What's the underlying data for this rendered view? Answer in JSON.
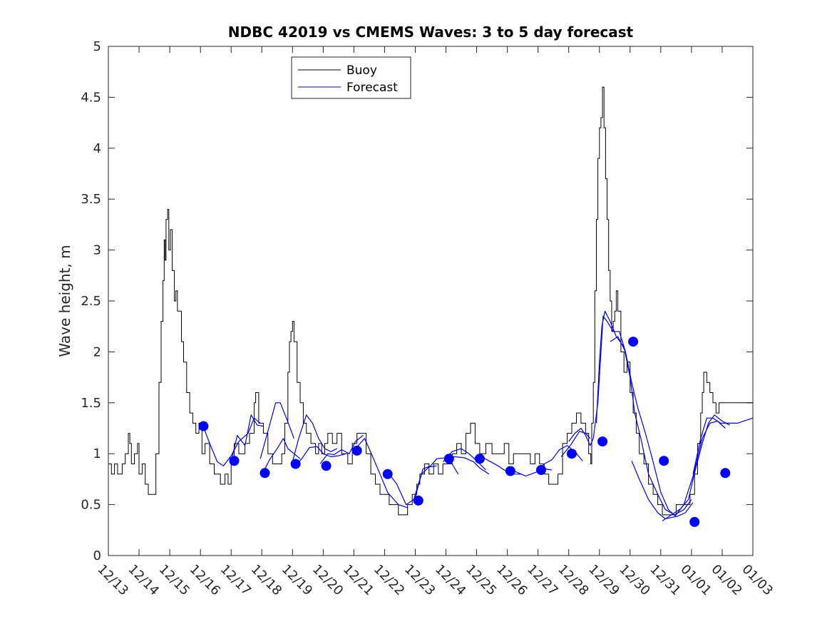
{
  "chart_data": {
    "type": "line",
    "title": "NDBC 42019 vs CMEMS Waves: 3 to 5 day forecast",
    "xlabel": "",
    "ylabel": "Wave height, m",
    "xlim": [
      0,
      21
    ],
    "ylim": [
      0,
      5
    ],
    "grid": false,
    "legend_position": "top-center",
    "categories": [
      "12/13",
      "12/14",
      "12/15",
      "12/16",
      "12/17",
      "12/18",
      "12/19",
      "12/20",
      "12/21",
      "12/22",
      "12/23",
      "12/24",
      "12/25",
      "12/26",
      "12/27",
      "12/28",
      "12/29",
      "12/30",
      "12/31",
      "01/01",
      "01/02",
      "01/03"
    ],
    "yticks": [
      "0",
      "0.5",
      "1",
      "1.5",
      "2",
      "2.5",
      "3",
      "3.5",
      "4",
      "4.5",
      "5"
    ],
    "legend": [
      "Buoy",
      "Forecast"
    ],
    "colors": {
      "buoy": "#000000",
      "forecast": "#0000ff",
      "axes": "#262626"
    },
    "buoy": [
      [
        0,
        0.9
      ],
      [
        0.1,
        0.8
      ],
      [
        0.2,
        0.9
      ],
      [
        0.3,
        0.8
      ],
      [
        0.45,
        0.9
      ],
      [
        0.55,
        1.0
      ],
      [
        0.65,
        1.2
      ],
      [
        0.7,
        1.1
      ],
      [
        0.75,
        0.9
      ],
      [
        0.85,
        1.0
      ],
      [
        0.95,
        1.1
      ],
      [
        1.0,
        0.8
      ],
      [
        1.1,
        0.9
      ],
      [
        1.2,
        0.7
      ],
      [
        1.3,
        0.6
      ],
      [
        1.45,
        0.6
      ],
      [
        1.55,
        1.0
      ],
      [
        1.65,
        1.7
      ],
      [
        1.72,
        2.3
      ],
      [
        1.78,
        2.7
      ],
      [
        1.82,
        3.1
      ],
      [
        1.85,
        2.9
      ],
      [
        1.88,
        3.3
      ],
      [
        1.93,
        3.4
      ],
      [
        1.97,
        3.0
      ],
      [
        2.02,
        3.2
      ],
      [
        2.08,
        2.8
      ],
      [
        2.15,
        2.5
      ],
      [
        2.2,
        2.6
      ],
      [
        2.25,
        2.4
      ],
      [
        2.3,
        2.4
      ],
      [
        2.38,
        2.1
      ],
      [
        2.45,
        1.9
      ],
      [
        2.55,
        1.6
      ],
      [
        2.65,
        1.4
      ],
      [
        2.75,
        1.3
      ],
      [
        2.85,
        1.2
      ],
      [
        2.95,
        1.3
      ],
      [
        3.05,
        1.0
      ],
      [
        3.15,
        1.1
      ],
      [
        3.3,
        0.9
      ],
      [
        3.45,
        0.8
      ],
      [
        3.55,
        0.8
      ],
      [
        3.65,
        0.7
      ],
      [
        3.8,
        0.8
      ],
      [
        3.9,
        0.7
      ],
      [
        4.0,
        0.9
      ],
      [
        4.1,
        1.1
      ],
      [
        4.25,
        1.0
      ],
      [
        4.45,
        1.1
      ],
      [
        4.6,
        1.2
      ],
      [
        4.75,
        1.5
      ],
      [
        4.8,
        1.6
      ],
      [
        4.9,
        1.3
      ],
      [
        5.05,
        1.2
      ],
      [
        5.2,
        1.0
      ],
      [
        5.35,
        0.9
      ],
      [
        5.5,
        0.9
      ],
      [
        5.65,
        1.0
      ],
      [
        5.75,
        1.3
      ],
      [
        5.85,
        1.8
      ],
      [
        5.9,
        2.1
      ],
      [
        5.95,
        2.2
      ],
      [
        6.0,
        2.3
      ],
      [
        6.05,
        2.1
      ],
      [
        6.15,
        1.7
      ],
      [
        6.25,
        1.5
      ],
      [
        6.35,
        1.3
      ],
      [
        6.45,
        1.2
      ],
      [
        6.6,
        1.1
      ],
      [
        6.75,
        1.0
      ],
      [
        6.85,
        1.1
      ],
      [
        6.95,
        1.0
      ],
      [
        7.05,
        1.1
      ],
      [
        7.15,
        1.2
      ],
      [
        7.3,
        1.1
      ],
      [
        7.45,
        1.2
      ],
      [
        7.6,
        1.0
      ],
      [
        7.8,
        0.9
      ],
      [
        7.95,
        1.1
      ],
      [
        8.1,
        1.2
      ],
      [
        8.25,
        1.2
      ],
      [
        8.4,
        1.0
      ],
      [
        8.55,
        0.8
      ],
      [
        8.7,
        0.7
      ],
      [
        8.85,
        0.6
      ],
      [
        9.0,
        0.6
      ],
      [
        9.15,
        0.5
      ],
      [
        9.3,
        0.5
      ],
      [
        9.45,
        0.4
      ],
      [
        9.6,
        0.4
      ],
      [
        9.75,
        0.5
      ],
      [
        9.9,
        0.6
      ],
      [
        10.05,
        0.7
      ],
      [
        10.15,
        0.8
      ],
      [
        10.3,
        0.9
      ],
      [
        10.45,
        0.8
      ],
      [
        10.6,
        0.9
      ],
      [
        10.75,
        0.8
      ],
      [
        10.9,
        0.9
      ],
      [
        11.05,
        0.9
      ],
      [
        11.2,
        1.0
      ],
      [
        11.35,
        1.1
      ],
      [
        11.5,
        1.0
      ],
      [
        11.65,
        1.2
      ],
      [
        11.8,
        1.3
      ],
      [
        11.95,
        1.1
      ],
      [
        12.1,
        1.0
      ],
      [
        12.3,
        1.1
      ],
      [
        12.5,
        1.0
      ],
      [
        12.7,
        1.0
      ],
      [
        12.9,
        1.1
      ],
      [
        13.05,
        0.9
      ],
      [
        13.2,
        1.0
      ],
      [
        13.4,
        1.0
      ],
      [
        13.6,
        1.0
      ],
      [
        13.75,
        0.9
      ],
      [
        13.9,
        1.0
      ],
      [
        14.05,
        0.9
      ],
      [
        14.2,
        0.8
      ],
      [
        14.35,
        0.7
      ],
      [
        14.5,
        0.7
      ],
      [
        14.65,
        0.8
      ],
      [
        14.8,
        1.1
      ],
      [
        14.95,
        1.2
      ],
      [
        15.1,
        1.3
      ],
      [
        15.25,
        1.4
      ],
      [
        15.4,
        1.3
      ],
      [
        15.55,
        1.2
      ],
      [
        15.65,
        1.0
      ],
      [
        15.72,
        0.9
      ],
      [
        15.75,
        1.3
      ],
      [
        15.8,
        1.7
      ],
      [
        15.85,
        2.6
      ],
      [
        15.9,
        3.3
      ],
      [
        15.95,
        3.9
      ],
      [
        16.0,
        4.2
      ],
      [
        16.05,
        4.3
      ],
      [
        16.1,
        4.6
      ],
      [
        16.15,
        4.2
      ],
      [
        16.2,
        3.7
      ],
      [
        16.25,
        3.3
      ],
      [
        16.3,
        2.8
      ],
      [
        16.35,
        2.5
      ],
      [
        16.4,
        2.2
      ],
      [
        16.45,
        2.3
      ],
      [
        16.5,
        2.4
      ],
      [
        16.55,
        2.6
      ],
      [
        16.6,
        2.4
      ],
      [
        16.7,
        2.0
      ],
      [
        16.8,
        1.8
      ],
      [
        16.9,
        1.9
      ],
      [
        17.0,
        1.6
      ],
      [
        17.1,
        1.4
      ],
      [
        17.2,
        1.2
      ],
      [
        17.3,
        1.0
      ],
      [
        17.45,
        0.9
      ],
      [
        17.6,
        0.7
      ],
      [
        17.75,
        0.6
      ],
      [
        17.9,
        0.5
      ],
      [
        18.05,
        0.4
      ],
      [
        18.2,
        0.4
      ],
      [
        18.35,
        0.4
      ],
      [
        18.5,
        0.5
      ],
      [
        18.65,
        0.5
      ],
      [
        18.8,
        0.5
      ],
      [
        18.95,
        0.6
      ],
      [
        19.1,
        0.8
      ],
      [
        19.2,
        1.1
      ],
      [
        19.3,
        1.4
      ],
      [
        19.35,
        1.6
      ],
      [
        19.4,
        1.8
      ],
      [
        19.5,
        1.7
      ],
      [
        19.6,
        1.6
      ],
      [
        19.7,
        1.5
      ],
      [
        19.8,
        1.4
      ],
      [
        19.9,
        1.5
      ],
      [
        21.0,
        1.5
      ]
    ],
    "forecast_runs": [
      [
        [
          3.05,
          1.3
        ],
        [
          3.3,
          1.1
        ],
        [
          3.55,
          0.92
        ],
        [
          3.75,
          0.88
        ],
        [
          4.0,
          0.98
        ],
        [
          4.25,
          1.12
        ],
        [
          4.55,
          1.2
        ],
        [
          4.75,
          1.35
        ],
        [
          4.95,
          1.3
        ]
      ],
      [
        [
          4.0,
          0.92
        ],
        [
          4.2,
          1.18
        ],
        [
          4.45,
          1.08
        ],
        [
          4.65,
          1.38
        ],
        [
          4.85,
          1.28
        ],
        [
          5.05,
          1.27
        ]
      ],
      [
        [
          5.05,
          0.82
        ],
        [
          5.25,
          0.94
        ],
        [
          5.5,
          1.05
        ],
        [
          5.7,
          1.15
        ],
        [
          5.85,
          1.05
        ],
        [
          6.05,
          1.0
        ],
        [
          6.25,
          0.95
        ]
      ],
      [
        [
          4.95,
          0.95
        ],
        [
          5.2,
          1.22
        ],
        [
          5.45,
          1.5
        ],
        [
          5.6,
          1.5
        ],
        [
          5.8,
          1.35
        ],
        [
          6.05,
          1.15
        ]
      ],
      [
        [
          6.0,
          0.92
        ],
        [
          6.2,
          1.15
        ],
        [
          6.45,
          1.38
        ],
        [
          6.65,
          1.3
        ],
        [
          6.85,
          1.15
        ],
        [
          7.05,
          1.05
        ],
        [
          7.25,
          1.02
        ],
        [
          7.45,
          1.05
        ]
      ],
      [
        [
          6.05,
          0.86
        ],
        [
          6.3,
          0.95
        ],
        [
          6.55,
          1.06
        ],
        [
          6.8,
          1.07
        ],
        [
          7.0,
          1.0
        ],
        [
          7.25,
          0.97
        ],
        [
          7.5,
          0.98
        ],
        [
          7.75,
          1.0
        ]
      ],
      [
        [
          6.9,
          0.9
        ],
        [
          7.15,
          1.0
        ],
        [
          7.35,
          0.99
        ],
        [
          7.6,
          1.04
        ],
        [
          7.85,
          1.0
        ],
        [
          8.05,
          1.12
        ],
        [
          8.3,
          1.18
        ]
      ],
      [
        [
          8.05,
          1.05
        ],
        [
          8.35,
          1.15
        ],
        [
          8.6,
          0.98
        ],
        [
          8.85,
          0.8
        ],
        [
          9.1,
          0.62
        ],
        [
          9.45,
          0.5
        ],
        [
          9.75,
          0.47
        ]
      ],
      [
        [
          9.1,
          0.82
        ],
        [
          9.4,
          0.7
        ],
        [
          9.7,
          0.5
        ],
        [
          9.95,
          0.55
        ],
        [
          10.2,
          0.8
        ],
        [
          10.45,
          0.87
        ],
        [
          10.7,
          0.88
        ]
      ],
      [
        [
          9.95,
          0.52
        ],
        [
          10.25,
          0.85
        ],
        [
          10.5,
          0.88
        ],
        [
          10.7,
          0.95
        ],
        [
          11.0,
          0.96
        ],
        [
          11.2,
          0.9
        ],
        [
          11.4,
          0.8
        ]
      ],
      [
        [
          10.9,
          0.92
        ],
        [
          11.2,
          1.02
        ],
        [
          11.5,
          1.05
        ],
        [
          11.75,
          1.0
        ],
        [
          12.0,
          0.93
        ],
        [
          12.3,
          0.84
        ]
      ],
      [
        [
          10.95,
          0.97
        ],
        [
          11.3,
          0.97
        ],
        [
          11.6,
          0.96
        ],
        [
          11.9,
          0.92
        ],
        [
          12.1,
          0.86
        ],
        [
          12.4,
          0.8
        ]
      ],
      [
        [
          12.1,
          0.98
        ],
        [
          12.4,
          0.93
        ],
        [
          12.7,
          0.88
        ],
        [
          12.95,
          0.83
        ],
        [
          13.2,
          0.8
        ],
        [
          13.45,
          0.8
        ]
      ],
      [
        [
          12.95,
          0.85
        ],
        [
          13.3,
          0.82
        ],
        [
          13.6,
          0.78
        ],
        [
          13.95,
          0.82
        ],
        [
          14.25,
          0.85
        ],
        [
          14.45,
          0.84
        ]
      ],
      [
        [
          13.95,
          0.82
        ],
        [
          14.2,
          0.9
        ],
        [
          14.45,
          0.94
        ],
        [
          14.7,
          1.04
        ],
        [
          14.95,
          1.08
        ],
        [
          15.2,
          1.02
        ],
        [
          15.45,
          0.93
        ]
      ],
      [
        [
          14.75,
          0.97
        ],
        [
          15.05,
          1.08
        ],
        [
          15.35,
          1.22
        ],
        [
          15.55,
          1.2
        ],
        [
          15.7,
          1.15
        ]
      ],
      [
        [
          15.0,
          1.12
        ],
        [
          15.2,
          1.2
        ],
        [
          15.4,
          1.25
        ],
        [
          15.55,
          1.18
        ],
        [
          15.7,
          1.08
        ],
        [
          15.8,
          1.15
        ],
        [
          15.95,
          1.5
        ],
        [
          16.05,
          2.0
        ],
        [
          16.12,
          2.35
        ],
        [
          16.25,
          2.3
        ],
        [
          16.45,
          2.2
        ],
        [
          16.65,
          2.2
        ],
        [
          16.85,
          2.0
        ]
      ],
      [
        [
          15.9,
          1.3
        ],
        [
          16.0,
          1.9
        ],
        [
          16.08,
          2.25
        ],
        [
          16.18,
          2.4
        ],
        [
          16.35,
          2.3
        ],
        [
          16.55,
          2.15
        ],
        [
          16.8,
          2.05
        ],
        [
          17.0,
          1.75
        ],
        [
          17.15,
          1.4
        ],
        [
          17.35,
          1.15
        ],
        [
          17.6,
          0.8
        ],
        [
          17.9,
          0.6
        ],
        [
          18.15,
          0.45
        ],
        [
          18.45,
          0.4
        ],
        [
          18.75,
          0.45
        ],
        [
          19.0,
          0.55
        ]
      ],
      [
        [
          16.35,
          2.1
        ],
        [
          16.6,
          2.15
        ],
        [
          16.85,
          2.0
        ],
        [
          17.05,
          1.7
        ],
        [
          17.25,
          1.45
        ],
        [
          17.5,
          1.2
        ],
        [
          17.75,
          0.92
        ],
        [
          18.0,
          0.62
        ],
        [
          18.25,
          0.45
        ],
        [
          18.5,
          0.38
        ],
        [
          18.8,
          0.42
        ],
        [
          19.05,
          0.52
        ]
      ],
      [
        [
          17.05,
          0.93
        ],
        [
          17.3,
          0.75
        ],
        [
          17.6,
          0.55
        ],
        [
          17.9,
          0.42
        ],
        [
          18.15,
          0.36
        ],
        [
          18.45,
          0.38
        ],
        [
          18.75,
          0.5
        ],
        [
          19.05,
          0.78
        ],
        [
          19.35,
          1.15
        ],
        [
          19.6,
          1.3
        ],
        [
          19.85,
          1.32
        ],
        [
          20.1,
          1.25
        ]
      ],
      [
        [
          18.05,
          0.34
        ],
        [
          18.35,
          0.4
        ],
        [
          18.65,
          0.46
        ],
        [
          18.9,
          0.55
        ],
        [
          19.1,
          0.81
        ],
        [
          19.35,
          1.1
        ],
        [
          19.55,
          1.3
        ],
        [
          19.75,
          1.38
        ],
        [
          20.0,
          1.32
        ],
        [
          20.25,
          1.28
        ]
      ],
      [
        [
          19.05,
          0.8
        ],
        [
          19.3,
          1.15
        ],
        [
          19.5,
          1.35
        ],
        [
          19.7,
          1.35
        ],
        [
          19.95,
          1.3
        ],
        [
          20.2,
          1.3
        ],
        [
          20.5,
          1.3
        ],
        [
          21.0,
          1.35
        ]
      ]
    ],
    "forecast_markers": [
      [
        3.1,
        1.27
      ],
      [
        4.1,
        0.93
      ],
      [
        5.1,
        0.81
      ],
      [
        6.1,
        0.9
      ],
      [
        7.1,
        0.88
      ],
      [
        8.1,
        1.03
      ],
      [
        9.1,
        0.8
      ],
      [
        10.1,
        0.54
      ],
      [
        11.1,
        0.95
      ],
      [
        12.1,
        0.95
      ],
      [
        13.1,
        0.83
      ],
      [
        14.1,
        0.84
      ],
      [
        15.1,
        1.0
      ],
      [
        16.1,
        1.12
      ],
      [
        17.1,
        2.1
      ],
      [
        18.1,
        0.93
      ],
      [
        19.1,
        0.33
      ],
      [
        20.1,
        0.81
      ]
    ]
  }
}
